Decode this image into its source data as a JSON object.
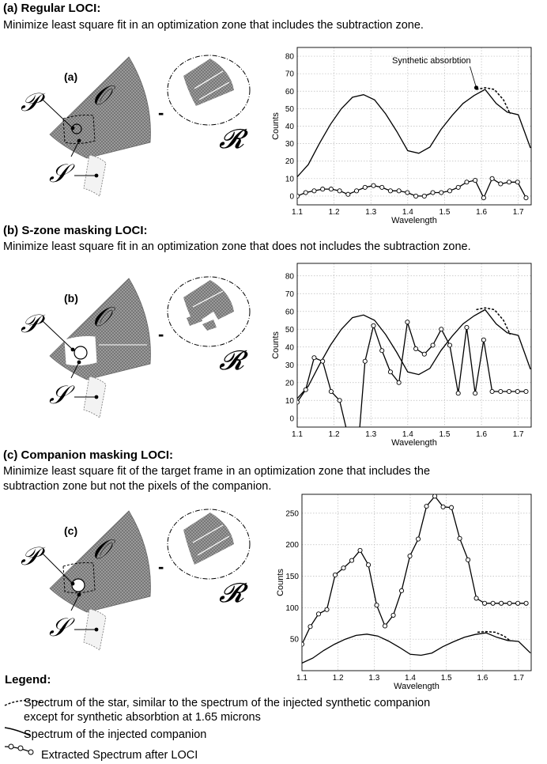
{
  "panels": [
    {
      "heading": "(a) Regular LOCI:",
      "description": [
        "Minimize least square fit in an optimization zone that includes the subtraction zone."
      ],
      "schematic": {
        "tag": "(a)",
        "o": "𝒪",
        "p": "𝒫",
        "s": "𝒮",
        "r": "𝓡",
        "minus": "-"
      }
    },
    {
      "heading": "(b) S-zone masking LOCI:",
      "description": [
        "Minimize least square fit in an optimization zone that does not includes the subtraction zone."
      ],
      "schematic": {
        "tag": "(b)",
        "o": "𝒪",
        "p": "𝒫",
        "s": "𝒮",
        "r": "𝓡",
        "minus": "-"
      }
    },
    {
      "heading": " (c) Companion masking LOCI:",
      "description": [
        "Minimize least square fit of the target frame in an optimization zone that includes the",
        "subtraction zone but not the pixels of the companion."
      ],
      "schematic": {
        "tag": "(c)",
        "o": "𝒪",
        "p": "𝒫",
        "s": "𝒮",
        "r": "𝓡",
        "minus": "-"
      }
    }
  ],
  "chart_data": [
    {
      "type": "line",
      "xlabel": "Wavelength",
      "ylabel": "Counts",
      "xlim": [
        1.1,
        1.735
      ],
      "ylim": [
        -5,
        85
      ],
      "xticks": [
        "1.1",
        "1.2",
        "1.3",
        "1.4",
        "1.5",
        "1.6",
        "1.7"
      ],
      "yticks": [
        "0",
        "10",
        "20",
        "30",
        "40",
        "50",
        "60",
        "70",
        "80"
      ],
      "grid": true,
      "annotation": {
        "text": "Synthetic absorbtion",
        "x": 1.586,
        "y": 62
      },
      "series": [
        {
          "role": "injected",
          "style": "solid",
          "x": [
            1.1,
            1.13,
            1.16,
            1.19,
            1.22,
            1.25,
            1.28,
            1.31,
            1.34,
            1.37,
            1.4,
            1.43,
            1.46,
            1.49,
            1.52,
            1.55,
            1.58,
            1.61,
            1.64,
            1.67,
            1.7,
            1.733
          ],
          "y": [
            11,
            18,
            30,
            41,
            50,
            56.5,
            58,
            55,
            47,
            37,
            26,
            24.5,
            28,
            38,
            46,
            53,
            57.5,
            61,
            53,
            48,
            46.5,
            27.5
          ]
        },
        {
          "role": "star",
          "style": "dashed",
          "x": [
            1.586,
            1.61,
            1.635,
            1.66,
            1.678
          ],
          "y": [
            61,
            62,
            61,
            55,
            47
          ]
        },
        {
          "role": "extracted",
          "style": "circles",
          "x": [
            1.1,
            1.123,
            1.146,
            1.169,
            1.192,
            1.215,
            1.238,
            1.261,
            1.284,
            1.307,
            1.33,
            1.353,
            1.376,
            1.399,
            1.422,
            1.445,
            1.468,
            1.491,
            1.514,
            1.537,
            1.56,
            1.583,
            1.606,
            1.629,
            1.652,
            1.675,
            1.698,
            1.721
          ],
          "y": [
            0,
            2,
            3,
            4,
            4,
            3,
            1,
            3,
            5,
            6,
            5,
            3,
            3,
            2,
            0,
            0,
            2,
            2,
            3,
            5,
            8,
            9,
            -1,
            10,
            7,
            8,
            8,
            -1
          ]
        }
      ]
    },
    {
      "type": "line",
      "xlabel": "Wavelength",
      "ylabel": "Counts",
      "xlim": [
        1.1,
        1.735
      ],
      "ylim": [
        -5,
        87
      ],
      "xticks": [
        "1.1",
        "1.2",
        "1.3",
        "1.4",
        "1.5",
        "1.6",
        "1.7"
      ],
      "yticks": [
        "0",
        "10",
        "20",
        "30",
        "40",
        "50",
        "60",
        "70",
        "80"
      ],
      "grid": true,
      "series": [
        {
          "role": "injected",
          "style": "solid",
          "x": [
            1.1,
            1.13,
            1.16,
            1.19,
            1.22,
            1.25,
            1.28,
            1.31,
            1.34,
            1.37,
            1.4,
            1.43,
            1.46,
            1.49,
            1.52,
            1.55,
            1.58,
            1.61,
            1.64,
            1.67,
            1.7,
            1.733
          ],
          "y": [
            11,
            18,
            30,
            41,
            50,
            56.5,
            58,
            55,
            47,
            37,
            26,
            24.5,
            28,
            38,
            46,
            53,
            57.5,
            61,
            53,
            48,
            46.5,
            27.5
          ]
        },
        {
          "role": "star",
          "style": "dashed",
          "x": [
            1.586,
            1.61,
            1.635,
            1.66,
            1.678
          ],
          "y": [
            61,
            62,
            61,
            55,
            47
          ]
        },
        {
          "role": "extracted",
          "style": "circles",
          "x": [
            1.1,
            1.123,
            1.146,
            1.169,
            1.192,
            1.215,
            1.238,
            1.261,
            1.284,
            1.307,
            1.33,
            1.353,
            1.376,
            1.399,
            1.422,
            1.445,
            1.468,
            1.491,
            1.514,
            1.537,
            1.56,
            1.583,
            1.606,
            1.629,
            1.652,
            1.675,
            1.698,
            1.721
          ],
          "y": [
            9,
            16,
            34,
            32,
            15,
            10,
            -10,
            -28,
            32,
            52,
            38,
            26,
            20,
            54,
            39,
            36,
            41,
            50,
            41,
            14,
            51,
            14,
            44,
            15,
            15,
            15,
            15,
            15
          ]
        }
      ]
    },
    {
      "type": "line",
      "xlabel": "Wavelength",
      "ylabel": "Counts",
      "xlim": [
        1.1,
        1.735
      ],
      "ylim": [
        0,
        280
      ],
      "xticks": [
        "1.1",
        "1.2",
        "1.3",
        "1.4",
        "1.5",
        "1.6",
        "1.7"
      ],
      "yticks": [
        "50",
        "100",
        "150",
        "200",
        "250"
      ],
      "grid": true,
      "series": [
        {
          "role": "injected",
          "style": "solid",
          "x": [
            1.1,
            1.13,
            1.16,
            1.19,
            1.22,
            1.25,
            1.28,
            1.31,
            1.34,
            1.37,
            1.4,
            1.43,
            1.46,
            1.49,
            1.52,
            1.55,
            1.58,
            1.61,
            1.64,
            1.67,
            1.7,
            1.733
          ],
          "y": [
            12,
            20,
            32,
            42,
            50,
            56,
            58,
            55,
            47,
            37,
            26,
            24.5,
            28,
            38,
            46,
            53,
            57.5,
            60,
            53,
            48,
            46.5,
            28
          ]
        },
        {
          "role": "star",
          "style": "dashed",
          "x": [
            1.586,
            1.61,
            1.635,
            1.66,
            1.678
          ],
          "y": [
            61,
            62,
            61,
            55,
            47
          ]
        },
        {
          "role": "extracted",
          "style": "circles",
          "x": [
            1.1,
            1.123,
            1.146,
            1.169,
            1.192,
            1.215,
            1.238,
            1.261,
            1.284,
            1.307,
            1.33,
            1.353,
            1.376,
            1.399,
            1.422,
            1.445,
            1.468,
            1.491,
            1.514,
            1.537,
            1.56,
            1.583,
            1.606,
            1.629,
            1.652,
            1.675,
            1.698,
            1.721
          ],
          "y": [
            42,
            70,
            90,
            97,
            152,
            163,
            175,
            191,
            168,
            104,
            71,
            88,
            127,
            182,
            209,
            261,
            277,
            260,
            259,
            210,
            176,
            115,
            107,
            107,
            107,
            107,
            107,
            107
          ]
        }
      ]
    }
  ],
  "legend": {
    "title": "Legend:",
    "items": [
      {
        "style": "dashed",
        "lines": [
          "Spectrum of the star, similar to the spectrum of the injected synthetic companion",
          "except for synthetic absorbtion at 1.65 microns"
        ]
      },
      {
        "style": "solid",
        "lines": [
          "Spectrum of the injected companion"
        ]
      },
      {
        "style": "circles",
        "lines": [
          "Extracted Spectrum after LOCI"
        ]
      }
    ]
  }
}
